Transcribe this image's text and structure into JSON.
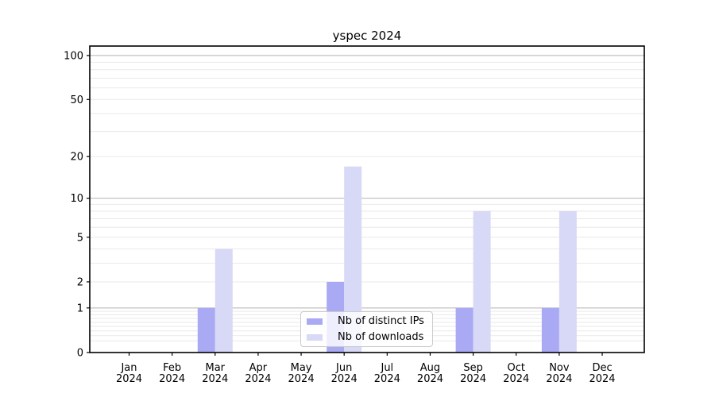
{
  "chart_data": {
    "type": "bar",
    "title": "yspec 2024",
    "year_line": "2024",
    "categories": [
      "Jan",
      "Feb",
      "Mar",
      "Apr",
      "May",
      "Jun",
      "Jul",
      "Aug",
      "Sep",
      "Oct",
      "Nov",
      "Dec"
    ],
    "series": [
      {
        "name": "Nb of distinct IPs",
        "color": "#a9a9f4",
        "values": [
          0,
          0,
          1,
          0,
          0,
          2,
          0,
          0,
          1,
          0,
          1,
          0
        ]
      },
      {
        "name": "Nb of downloads",
        "color": "#d8d8f7",
        "values": [
          0,
          0,
          4,
          0,
          0,
          17,
          0,
          0,
          8,
          0,
          8,
          0
        ]
      }
    ],
    "yscale": "log1p",
    "ylim": [
      0,
      116
    ],
    "ytick_values": [
      0,
      1,
      2,
      5,
      10,
      20,
      50,
      100
    ],
    "ytick_labels": [
      "0",
      "1",
      "2",
      "5",
      "10",
      "20",
      "50",
      "100"
    ],
    "grid": {
      "major_values": [
        1,
        10,
        100
      ],
      "major_color": "#b3b3b3",
      "minor_color": "#e9e9e9"
    },
    "legend_position": "lower center inside",
    "axis_color": "#000000"
  }
}
